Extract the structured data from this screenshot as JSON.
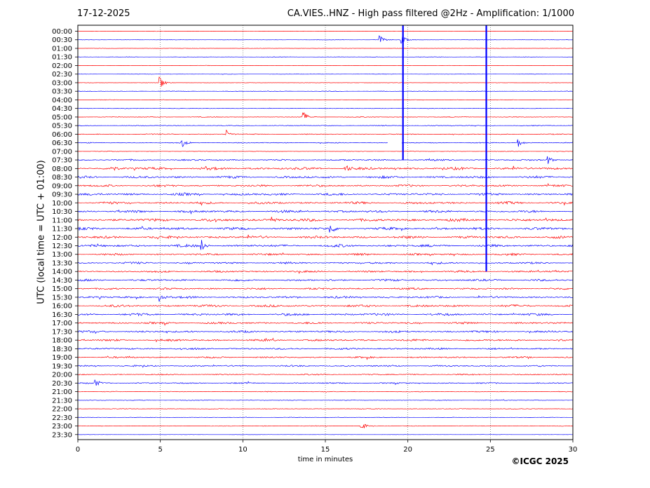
{
  "header": {
    "date": "17-12-2025",
    "title": "CA.VIES..HNZ - High pass filtered @2Hz - Amplification: 1/1000"
  },
  "footer": {
    "copyright": "©ICGC 2025"
  },
  "chart_data": {
    "type": "line",
    "title": "CA.VIES..HNZ - High pass filtered @2Hz - Amplification: 1/1000",
    "xlabel": "time in minutes",
    "ylabel": "UTC (local time = UTC + 01:00)",
    "xlim": [
      0,
      30
    ],
    "x_ticks": [
      "0",
      "5",
      "10",
      "15",
      "20",
      "25",
      "30"
    ],
    "grid": "vertical dotted at x = 5, 10, 15, 20, 25",
    "colors": {
      "even_rows": "#ff0000",
      "odd_rows": "#0000ff"
    },
    "rows": [
      "00:00",
      "00:30",
      "01:00",
      "01:30",
      "02:00",
      "02:30",
      "03:00",
      "03:30",
      "04:00",
      "04:30",
      "05:00",
      "05:30",
      "06:00",
      "06:30",
      "07:00",
      "07:30",
      "08:00",
      "08:30",
      "09:00",
      "09:30",
      "10:00",
      "10:30",
      "11:00",
      "11:30",
      "12:00",
      "12:30",
      "13:00",
      "13:30",
      "14:00",
      "14:30",
      "15:00",
      "15:30",
      "16:00",
      "16:30",
      "17:00",
      "17:30",
      "18:00",
      "18:30",
      "19:00",
      "19:30",
      "20:00",
      "20:30",
      "21:00",
      "21:30",
      "22:00",
      "22:30",
      "23:00",
      "23:30"
    ],
    "noise_level": [
      0.3,
      0.3,
      0.3,
      0.3,
      0.3,
      0.3,
      0.3,
      0.4,
      0.4,
      0.4,
      0.6,
      0.6,
      0.7,
      0.7,
      0.4,
      1.2,
      2.0,
      1.8,
      1.6,
      1.8,
      1.8,
      1.8,
      2.2,
      2.0,
      2.0,
      2.0,
      1.6,
      1.5,
      1.5,
      1.6,
      1.4,
      1.6,
      1.8,
      1.8,
      1.6,
      1.6,
      1.6,
      1.4,
      1.3,
      1.2,
      1.0,
      1.0,
      0.6,
      0.5,
      0.5,
      0.4,
      0.5,
      0.2
    ],
    "events": [
      {
        "row": 1,
        "minute": 18.3,
        "amplitude": 6
      },
      {
        "row": 1,
        "minute": 19.6,
        "amplitude": 8
      },
      {
        "row": 6,
        "minute": 5.0,
        "amplitude": 10
      },
      {
        "row": 10,
        "minute": 13.7,
        "amplitude": 7
      },
      {
        "row": 12,
        "minute": 9.0,
        "amplitude": 6
      },
      {
        "row": 13,
        "minute": 6.3,
        "amplitude": 6
      },
      {
        "row": 13,
        "minute": 26.7,
        "amplitude": 6
      },
      {
        "row": 15,
        "minute": 28.5,
        "amplitude": 7
      },
      {
        "row": 16,
        "minute": 2.0,
        "amplitude": 5
      },
      {
        "row": 16,
        "minute": 16.2,
        "amplitude": 6
      },
      {
        "row": 22,
        "minute": 11.8,
        "amplitude": 6
      },
      {
        "row": 23,
        "minute": 15.3,
        "amplitude": 7
      },
      {
        "row": 25,
        "minute": 7.5,
        "amplitude": 8
      },
      {
        "row": 31,
        "minute": 5.0,
        "amplitude": 7
      },
      {
        "row": 41,
        "minute": 1.0,
        "amplitude": 6
      },
      {
        "row": 46,
        "minute": 17.2,
        "amplitude": 6
      }
    ],
    "spikes": [
      {
        "minute": 19.7,
        "from_row": 0,
        "to_row": 15,
        "color": "#0000ff"
      },
      {
        "minute": 24.75,
        "from_row": 0,
        "to_row": 28,
        "color": "#0000ff"
      }
    ],
    "gap": {
      "row": 13,
      "start_minute": 18.8,
      "end_minute": 19.6
    }
  }
}
